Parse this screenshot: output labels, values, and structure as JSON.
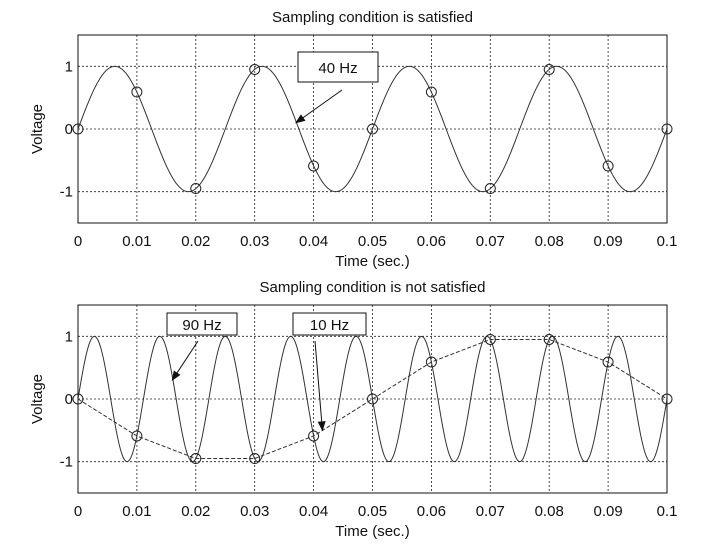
{
  "chart_data": [
    {
      "type": "line",
      "title": "Sampling condition is satisfied",
      "xlabel": "Time (sec.)",
      "ylabel": "Voltage",
      "xlim": [
        0,
        0.1
      ],
      "ylim": [
        -1.5,
        1.5
      ],
      "xticks": [
        "0",
        "0.01",
        "0.02",
        "0.03",
        "0.04",
        "0.05",
        "0.06",
        "0.07",
        "0.08",
        "0.09",
        "0.1"
      ],
      "yticks": [
        "-1",
        "0",
        "1"
      ],
      "grid": true,
      "series": [
        {
          "name": "40 Hz",
          "style": "solid",
          "function": "sin",
          "frequency_hz": 40,
          "amplitude": 1
        }
      ],
      "samples": {
        "marker": "circle",
        "x": [
          0,
          0.01,
          0.02,
          0.03,
          0.04,
          0.05,
          0.06,
          0.07,
          0.08,
          0.09,
          0.1
        ],
        "y": [
          0,
          0.59,
          -0.95,
          0.95,
          -0.59,
          0,
          0.59,
          -0.95,
          0.95,
          -0.59,
          0
        ]
      },
      "annotations": [
        {
          "text": "40 Hz",
          "points_to": [
            0.037,
            0.1
          ]
        }
      ]
    },
    {
      "type": "line",
      "title": "Sampling condition is not satisfied",
      "xlabel": "Time (sec.)",
      "ylabel": "Voltage",
      "xlim": [
        0,
        0.1
      ],
      "ylim": [
        -1.5,
        1.5
      ],
      "xticks": [
        "0",
        "0.01",
        "0.02",
        "0.03",
        "0.04",
        "0.05",
        "0.06",
        "0.07",
        "0.08",
        "0.09",
        "0.1"
      ],
      "yticks": [
        "-1",
        "0",
        "1"
      ],
      "grid": true,
      "series": [
        {
          "name": "90 Hz",
          "style": "solid",
          "function": "sin",
          "frequency_hz": 90,
          "amplitude": 1
        },
        {
          "name": "10 Hz",
          "style": "dashed",
          "function": "sin",
          "frequency_hz": 10,
          "amplitude": -1
        }
      ],
      "samples": {
        "marker": "circle",
        "x": [
          0,
          0.01,
          0.02,
          0.03,
          0.04,
          0.05,
          0.06,
          0.07,
          0.08,
          0.09,
          0.1
        ],
        "y": [
          0,
          -0.59,
          -0.95,
          -0.95,
          -0.59,
          0,
          0.59,
          0.95,
          0.95,
          0.59,
          0
        ]
      },
      "annotations": [
        {
          "text": "90 Hz",
          "points_to": [
            0.016,
            0.3
          ]
        },
        {
          "text": "10 Hz",
          "points_to": [
            0.0415,
            -0.5
          ]
        }
      ]
    }
  ]
}
